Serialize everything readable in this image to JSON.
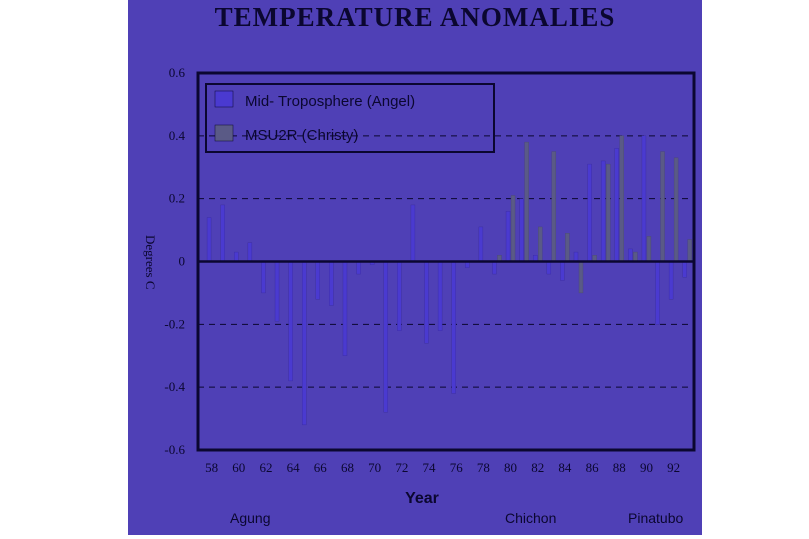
{
  "chart_data": {
    "type": "bar",
    "title": "TEMPERATURE ANOMALIES",
    "xlabel": "Year",
    "ylabel": "Degrees C",
    "ylim": [
      -0.6,
      0.6
    ],
    "yticks": [
      "0.6",
      "0.4",
      "0.2",
      "0",
      "-0.2",
      "-0.4",
      "-0.6"
    ],
    "xticks": [
      "58",
      "60",
      "62",
      "64",
      "66",
      "68",
      "70",
      "72",
      "74",
      "76",
      "78",
      "80",
      "82",
      "84",
      "86",
      "88",
      "90",
      "92"
    ],
    "xlim": [
      57,
      93.5
    ],
    "grid": "dashed horizontal at 0.4, 0.2, -0.2, -0.4",
    "legend_position": "top-left",
    "series": [
      {
        "name": "Mid-Troposphere (Angel)",
        "color": "#4a3ad0",
        "x": [
          58,
          59,
          60,
          61,
          62,
          63,
          64,
          65,
          66,
          67,
          68,
          69,
          70,
          71,
          72,
          73,
          74,
          75,
          76,
          77,
          78,
          79,
          80,
          81,
          82,
          83,
          84,
          85,
          86,
          87,
          88,
          89,
          90,
          91,
          92,
          93
        ],
        "values": [
          0.14,
          0.18,
          0.03,
          0.06,
          -0.1,
          -0.19,
          -0.38,
          -0.52,
          -0.12,
          -0.14,
          -0.3,
          -0.04,
          -0.01,
          -0.48,
          -0.22,
          0.18,
          -0.26,
          -0.22,
          -0.42,
          -0.02,
          0.11,
          -0.04,
          0.16,
          0.2,
          0.02,
          -0.04,
          -0.06,
          0.03,
          0.31,
          0.32,
          0.36,
          0.04,
          0.4,
          -0.2,
          -0.12,
          -0.05
        ]
      },
      {
        "name": "MSU2R (Christy)",
        "color": "#5a5a86",
        "x": [
          79,
          80,
          81,
          82,
          83,
          84,
          85,
          86,
          87,
          88,
          89,
          90,
          91,
          92,
          93
        ],
        "values": [
          0.02,
          0.21,
          0.38,
          0.11,
          0.35,
          0.09,
          -0.1,
          0.02,
          0.31,
          0.4,
          0.03,
          0.08,
          0.35,
          0.33,
          0.07
        ]
      }
    ],
    "annotations": [
      "Agung",
      "Chichon",
      "Pinatubo"
    ]
  },
  "legend": {
    "entries": [
      "Mid- Troposphere (Angel)",
      "MSU2R  (Christy)"
    ]
  },
  "ylabel_text": "Degrees C",
  "annotations": {
    "agung": "Agung",
    "chichon": "Chichon",
    "pinatubo": "Pinatubo"
  }
}
